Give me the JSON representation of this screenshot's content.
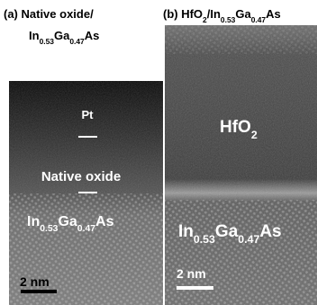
{
  "panel_a": {
    "title": "(a) Native oxide/",
    "title_formula": [
      "In",
      "0.53",
      "Ga",
      "0.47",
      "As"
    ],
    "labels": {
      "pt": "Pt",
      "native_oxide": "Native oxide",
      "substrate": [
        "In",
        "0.53",
        "Ga",
        "0.47",
        "As"
      ]
    },
    "scale_bar": "2 nm"
  },
  "panel_b": {
    "title": [
      "(b) HfO",
      "2",
      "/In",
      "0.53",
      "Ga",
      "0.47",
      "As"
    ],
    "labels": {
      "oxide": [
        "HfO",
        "2"
      ],
      "substrate": [
        "In",
        "0.53",
        "Ga",
        "0.47",
        "As"
      ]
    },
    "scale_bar": "2 nm"
  }
}
